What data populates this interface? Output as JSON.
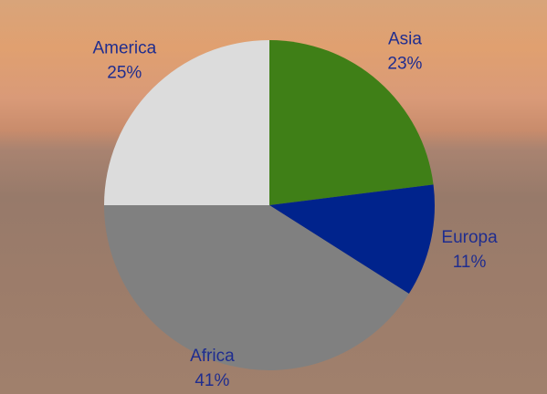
{
  "chart_data": {
    "type": "pie",
    "categories": [
      "Asia",
      "Europa",
      "Africa",
      "America"
    ],
    "values": [
      23,
      11,
      41,
      25
    ],
    "value_labels": [
      "23%",
      "11%",
      "41%",
      "25%"
    ],
    "colors": [
      "#3f7f17",
      "#00238c",
      "#808080",
      "#dcdcdc"
    ]
  }
}
